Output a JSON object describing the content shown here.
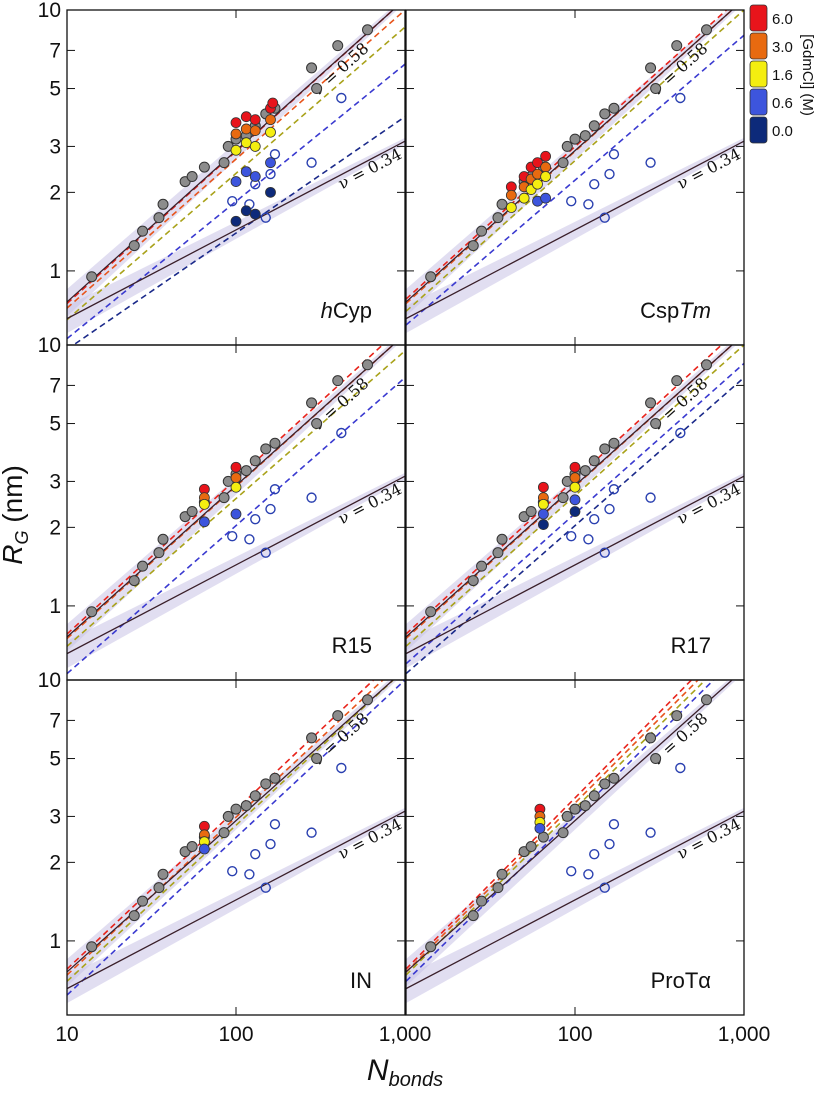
{
  "chart_data": {
    "type": "scatter",
    "log_x": true,
    "log_y": true,
    "xlim": [
      10,
      1000
    ],
    "ylim": [
      0.52,
      10
    ],
    "xticks": [
      10,
      100,
      {
        "value": 1000,
        "label": "1,000"
      }
    ],
    "yticks": [
      1,
      2,
      3,
      5,
      7,
      10
    ],
    "xlabel": {
      "main": "N",
      "sub": "bonds"
    },
    "ylabel": {
      "main": "R",
      "sub": "G",
      "rest": " (nm)"
    },
    "reference_lines": [
      {
        "label": "ν = 0.58",
        "prefactor": 0.2,
        "exponent": 0.58,
        "color": "#3a1f2a"
      },
      {
        "label": "ν = 0.34",
        "prefactor": 0.3,
        "exponent": 0.34,
        "color": "#3a1f2a"
      }
    ],
    "reference_points": {
      "color": "#8c8c8c",
      "x": [
        14,
        25,
        28,
        35,
        37,
        50,
        55,
        65,
        85,
        90,
        100,
        115,
        130,
        150,
        170,
        280,
        300,
        400,
        600
      ],
      "values": [
        0.95,
        1.25,
        1.42,
        1.6,
        1.8,
        2.2,
        2.3,
        2.5,
        2.6,
        3.0,
        3.2,
        3.3,
        3.6,
        4.0,
        4.2,
        6.0,
        5.0,
        7.3,
        8.4
      ]
    },
    "folded_points": {
      "color": "#2a40b0",
      "x": [
        95,
        120,
        130,
        160,
        150,
        170,
        280,
        420
      ],
      "values": [
        1.85,
        1.8,
        2.15,
        2.35,
        1.6,
        2.8,
        2.6,
        4.6
      ]
    },
    "legend": {
      "title": "[GdmCl] (M)",
      "entries": [
        {
          "label": "6.0",
          "color": "#e8141b",
          "line_color": "#e8231b"
        },
        {
          "label": "3.0",
          "color": "#e86a10",
          "line_color": "#e8541b"
        },
        {
          "label": "1.6",
          "color": "#f4ee10",
          "line_color": "#a9a21a"
        },
        {
          "label": "0.6",
          "color": "#3d55dd",
          "line_color": "#3a3ad0"
        },
        {
          "label": "0.0",
          "color": "#0d2a7a",
          "line_color": "#1b2a8a"
        }
      ]
    },
    "panels": [
      {
        "label": [
          {
            "text": "h",
            "italic": true
          },
          {
            "text": "Cyp",
            "italic": false
          }
        ],
        "series": [
          {
            "x": [
              100,
              115,
              130,
              160,
              165
            ],
            "values": [
              3.7,
              3.9,
              3.8,
              4.2,
              4.4
            ],
            "fit": [
              0.75,
              11
            ]
          },
          {
            "x": [
              100,
              115,
              130,
              160
            ],
            "values": [
              3.35,
              3.5,
              3.45,
              3.8
            ],
            "fit": [
              0.72,
              10
            ]
          },
          {
            "x": [
              100,
              115,
              130,
              160
            ],
            "values": [
              2.9,
              3.1,
              3.0,
              3.4
            ],
            "fit": [
              0.65,
              8.6
            ]
          },
          {
            "x": [
              100,
              115,
              130,
              160
            ],
            "values": [
              2.2,
              2.4,
              2.3,
              2.6
            ],
            "fit": [
              0.55,
              6.2
            ]
          },
          {
            "x": [
              100,
              115,
              130,
              160
            ],
            "values": [
              1.55,
              1.7,
              1.65,
              2.0
            ],
            "fit": [
              0.5,
              3.9
            ]
          }
        ]
      },
      {
        "label": [
          {
            "text": "Csp",
            "italic": false
          },
          {
            "text": "Tm",
            "italic": true
          }
        ],
        "series": [
          {
            "x": [
              42,
              50,
              55,
              60,
              67
            ],
            "values": [
              2.1,
              2.3,
              2.5,
              2.6,
              2.75
            ],
            "fit": [
              0.78,
              11.5
            ]
          },
          {
            "x": [
              42,
              50,
              55,
              60,
              67
            ],
            "values": [
              1.95,
              2.1,
              2.25,
              2.35,
              2.5
            ],
            "fit": [
              0.75,
              11
            ]
          },
          {
            "x": [
              42,
              50,
              55,
              60,
              67
            ],
            "values": [
              1.75,
              1.9,
              2.05,
              2.15,
              2.3
            ],
            "fit": [
              0.7,
              10
            ]
          },
          {
            "x": [
              60,
              67
            ],
            "values": [
              1.85,
              1.9
            ],
            "fit": [
              0.62,
              8
            ]
          },
          null
        ]
      },
      {
        "label": [
          {
            "text": "R15",
            "italic": false
          }
        ],
        "series": [
          {
            "x": [
              65,
              100
            ],
            "values": [
              2.8,
              3.4
            ],
            "fit": [
              0.78,
              12
            ]
          },
          {
            "x": [
              65,
              100
            ],
            "values": [
              2.6,
              3.1
            ],
            "fit": [
              0.75,
              11
            ]
          },
          {
            "x": [
              65,
              100
            ],
            "values": [
              2.45,
              2.85
            ],
            "fit": [
              0.7,
              9.5
            ]
          },
          {
            "x": [
              65,
              100
            ],
            "values": [
              2.1,
              2.25
            ],
            "fit": [
              0.55,
              7.5
            ]
          },
          null
        ]
      },
      {
        "label": [
          {
            "text": "R17",
            "italic": false
          }
        ],
        "series": [
          {
            "x": [
              65,
              100
            ],
            "values": [
              2.85,
              3.4
            ],
            "fit": [
              0.78,
              12
            ]
          },
          {
            "x": [
              65,
              100
            ],
            "values": [
              2.6,
              3.1
            ],
            "fit": [
              0.75,
              11
            ]
          },
          {
            "x": [
              65,
              100
            ],
            "values": [
              2.45,
              2.85
            ],
            "fit": [
              0.7,
              10
            ]
          },
          {
            "x": [
              65,
              100
            ],
            "values": [
              2.25,
              2.55
            ],
            "fit": [
              0.6,
              8.5
            ]
          },
          {
            "x": [
              65,
              100
            ],
            "values": [
              2.05,
              2.3
            ],
            "fit": [
              0.55,
              7.5
            ]
          }
        ]
      },
      {
        "label": [
          {
            "text": "IN",
            "italic": false
          }
        ],
        "series": [
          {
            "x": [
              65
            ],
            "values": [
              2.75
            ],
            "fit": [
              0.78,
              13
            ]
          },
          {
            "x": [
              65
            ],
            "values": [
              2.55
            ],
            "fit": [
              0.74,
              12
            ]
          },
          {
            "x": [
              65
            ],
            "values": [
              2.4
            ],
            "fit": [
              0.7,
              11
            ]
          },
          {
            "x": [
              65
            ],
            "values": [
              2.25
            ],
            "fit": [
              0.62,
              10
            ]
          },
          null
        ]
      },
      {
        "label": [
          {
            "text": "ProTα",
            "italic": false
          }
        ],
        "series": [
          {
            "x": [
              62
            ],
            "values": [
              3.2
            ],
            "fit": [
              0.78,
              16
            ]
          },
          {
            "x": [
              62
            ],
            "values": [
              3.0
            ],
            "fit": [
              0.76,
              15
            ]
          },
          {
            "x": [
              62
            ],
            "values": [
              2.85
            ],
            "fit": [
              0.74,
              14
            ]
          },
          {
            "x": [
              62
            ],
            "values": [
              2.7
            ],
            "fit": [
              0.7,
              13
            ]
          },
          null
        ]
      }
    ]
  }
}
